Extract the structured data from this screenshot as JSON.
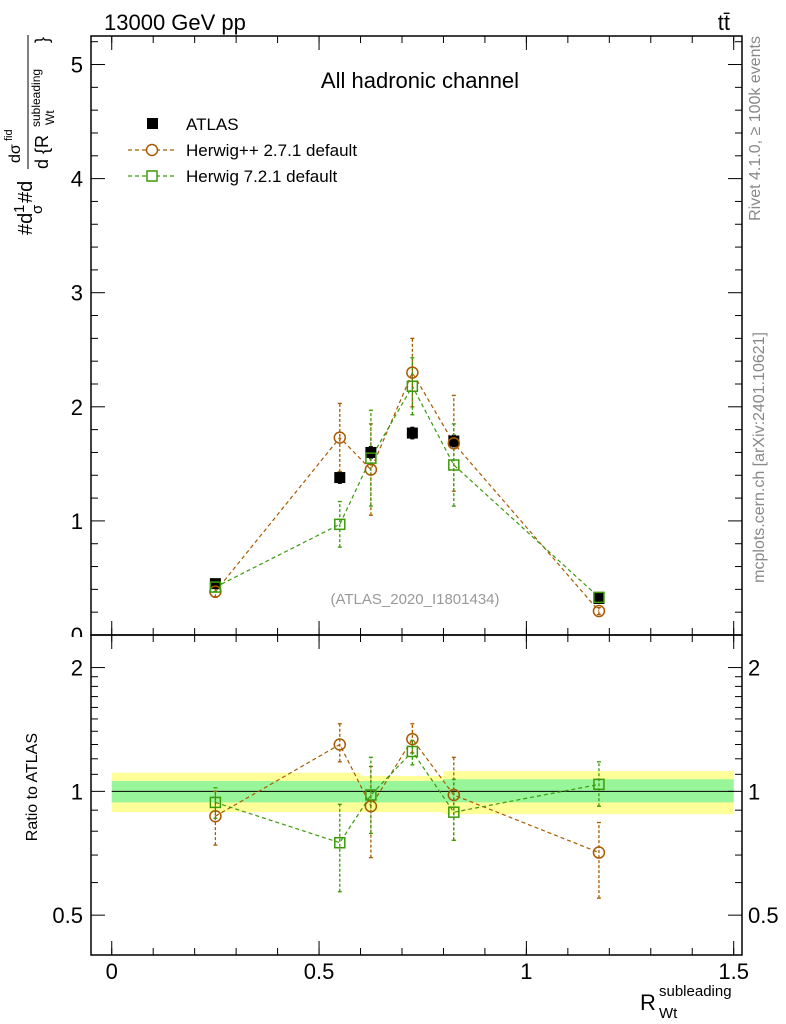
{
  "header": {
    "energy_label": "13000 GeV pp",
    "process_label": "tt̄"
  },
  "side_labels": {
    "rivet": "Rivet 4.1.0, ≥ 100k events",
    "source": "mcplots.cern.ch [arXiv:2401.10621]"
  },
  "chart_data": [
    {
      "type": "scatter",
      "panel": "main",
      "title": "All hadronic channel",
      "watermark": "(ATLAS_2020_I1801434)",
      "ylabel": "#d 1/σ #d dσ^fid / d {R_Wt^subleading}",
      "ylabel_parts": {
        "prefix": "#d",
        "frac1_num": "1",
        "frac1_den": "σ",
        "mid": "#d",
        "frac2_num": "dσ",
        "frac2_num_sup": "fid",
        "frac2_den": "d {R",
        "frac2_den_sub": "Wt",
        "frac2_den_sup": "subleading",
        "frac2_den_close": "}"
      },
      "xlim": [
        -0.05,
        1.52
      ],
      "ylim": [
        0,
        5.25
      ],
      "yticks": [
        1,
        2,
        3,
        4,
        5
      ],
      "ytick_labels": [
        "1",
        "2",
        "3",
        "4",
        "5"
      ],
      "cut_tick_label": "0",
      "legend_position": "top-left",
      "series": [
        {
          "name": "ATLAS",
          "style": "data",
          "color": "#000000",
          "x": [
            0.25,
            0.55,
            0.625,
            0.725,
            0.825,
            1.175
          ],
          "y": [
            0.45,
            1.38,
            1.6,
            1.77,
            1.7,
            0.32
          ],
          "yerr": [
            0.02,
            0.05,
            0.05,
            0.05,
            0.05,
            0.02
          ]
        },
        {
          "name": "Herwig++ 2.7.1 default",
          "style": "circle",
          "color": "#a85a00",
          "x": [
            0.25,
            0.55,
            0.625,
            0.725,
            0.825,
            1.175
          ],
          "y": [
            0.38,
            1.73,
            1.45,
            2.3,
            1.68,
            0.21
          ],
          "yerr": [
            0.05,
            0.3,
            0.4,
            0.3,
            0.42,
            0.03
          ]
        },
        {
          "name": "Herwig 7.2.1 default",
          "style": "square",
          "color": "#3a9a0a",
          "x": [
            0.25,
            0.55,
            0.625,
            0.725,
            0.825,
            1.175
          ],
          "y": [
            0.42,
            0.97,
            1.55,
            2.18,
            1.49,
            0.33
          ],
          "yerr": [
            0.04,
            0.2,
            0.42,
            0.25,
            0.36,
            0.03
          ]
        }
      ]
    },
    {
      "type": "scatter",
      "panel": "ratio",
      "ylabel": "Ratio to ATLAS",
      "xlabel": "R",
      "xlabel_sub": "Wt",
      "xlabel_sup": "subleading",
      "xlim": [
        -0.05,
        1.52
      ],
      "ylim": [
        0.4,
        2.4
      ],
      "yscale": "log",
      "reference": 1,
      "yticks": [
        0.5,
        1,
        2
      ],
      "ytick_labels": [
        "0.5",
        "1",
        "2"
      ],
      "xticks": [
        0,
        0.5,
        1,
        1.5
      ],
      "xtick_labels": [
        "0",
        "0.5",
        "1",
        "1.5"
      ],
      "bands": [
        {
          "x0": 0.0,
          "x1": 0.6,
          "inner": [
            0.94,
            1.06
          ],
          "outer": [
            0.89,
            1.11
          ]
        },
        {
          "x0": 0.6,
          "x1": 0.8,
          "inner": [
            0.94,
            1.06
          ],
          "outer": [
            0.89,
            1.09
          ]
        },
        {
          "x0": 0.8,
          "x1": 1.5,
          "inner": [
            0.94,
            1.07
          ],
          "outer": [
            0.88,
            1.12
          ]
        }
      ],
      "series": [
        {
          "name": "Herwig++ 2.7.1 default",
          "style": "circle",
          "color": "#a85a00",
          "x": [
            0.25,
            0.55,
            0.625,
            0.725,
            0.825,
            1.175
          ],
          "y": [
            0.87,
            1.3,
            0.92,
            1.34,
            0.98,
            0.71
          ],
          "yerr_lo": [
            0.13,
            0.12,
            0.23,
            0.1,
            0.22,
            0.16
          ],
          "yerr_hi": [
            0.13,
            0.16,
            0.23,
            0.12,
            0.23,
            0.13
          ]
        },
        {
          "name": "Herwig 7.2.1 default",
          "style": "square",
          "color": "#3a9a0a",
          "x": [
            0.25,
            0.55,
            0.625,
            0.725,
            0.825,
            1.175
          ],
          "y": [
            0.94,
            0.75,
            0.98,
            1.25,
            0.89,
            1.04
          ],
          "yerr_lo": [
            0.08,
            0.18,
            0.19,
            0.09,
            0.13,
            0.12
          ],
          "yerr_hi": [
            0.08,
            0.18,
            0.23,
            0.08,
            0.18,
            0.14
          ]
        }
      ]
    }
  ]
}
